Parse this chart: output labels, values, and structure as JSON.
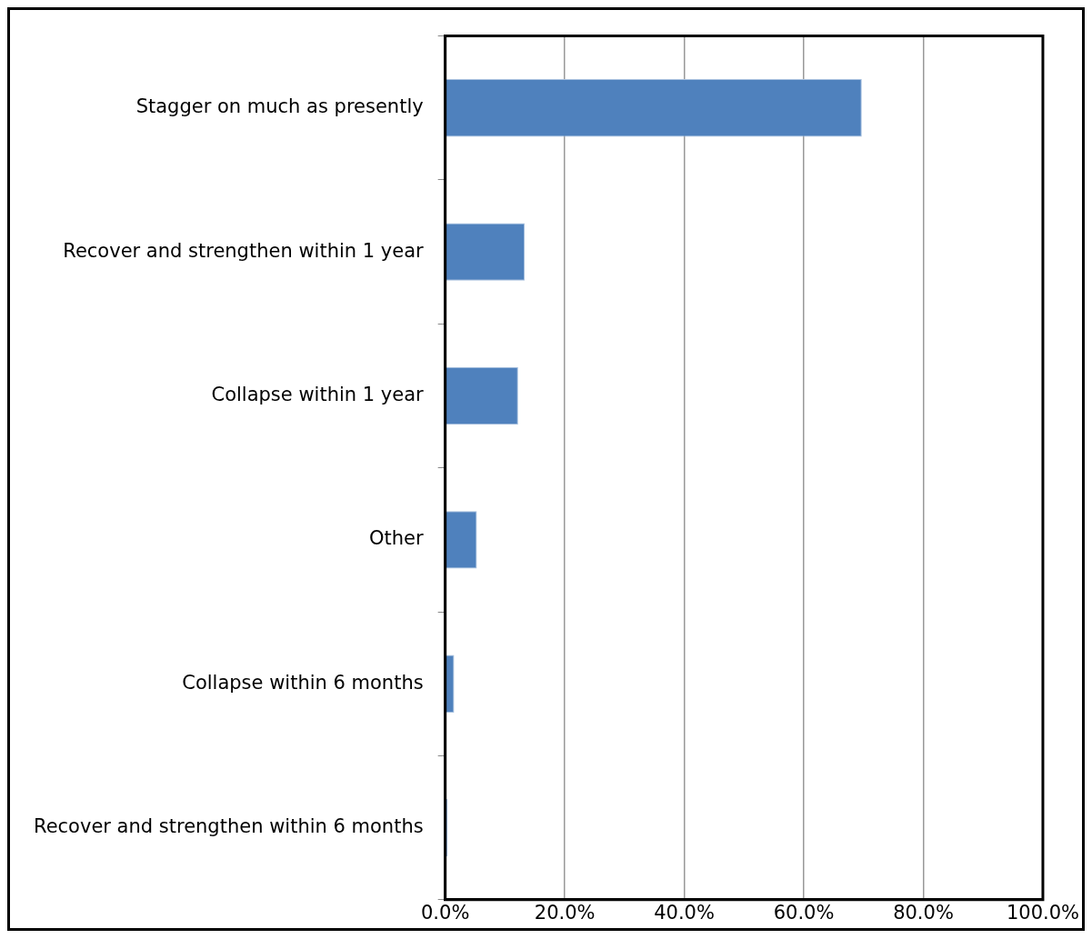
{
  "chart_data": {
    "type": "bar",
    "orientation": "horizontal",
    "categories": [
      "Stagger on much as presently",
      "Recover and strengthen within 1 year",
      "Collapse within 1 year",
      "Other",
      "Collapse within 6 months",
      "Recover and strengthen within 6 months"
    ],
    "values": [
      69.7,
      13.3,
      12.2,
      5.3,
      1.5,
      0.4
    ],
    "color": "#4f81bd",
    "xlim": [
      0,
      100
    ],
    "xticks": [
      {
        "value": 0,
        "label": "0.0%"
      },
      {
        "value": 20,
        "label": "20.0%"
      },
      {
        "value": 40,
        "label": "40.0%"
      },
      {
        "value": 60,
        "label": "60.0%"
      },
      {
        "value": 80,
        "label": "80.0%"
      },
      {
        "value": 100,
        "label": "100.0%"
      }
    ],
    "grid": "x",
    "legend": false
  }
}
